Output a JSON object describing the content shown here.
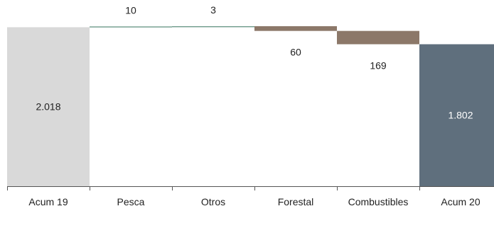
{
  "chart_data": {
    "type": "waterfall",
    "categories": [
      "Acum 19",
      "Pesca",
      "Otros",
      "Forestal",
      "Combustibles",
      "Acum 20"
    ],
    "bars": [
      {
        "category": "Acum 19",
        "kind": "total",
        "value": 2018,
        "label": "2.018"
      },
      {
        "category": "Pesca",
        "kind": "increase",
        "value": 10,
        "label": "10"
      },
      {
        "category": "Otros",
        "kind": "increase",
        "value": 3,
        "label": "3"
      },
      {
        "category": "Forestal",
        "kind": "decrease",
        "value": -60,
        "label": "60"
      },
      {
        "category": "Combustibles",
        "kind": "decrease",
        "value": -169,
        "label": "169"
      },
      {
        "category": "Acum 20",
        "kind": "total",
        "value": 1802,
        "label": "1.802"
      }
    ],
    "colors": {
      "start_total": "#d9d9d9",
      "end_total": "#5f6f7d",
      "increase": "#6e9a8a",
      "decrease": "#8c7869",
      "end_total_label": "#ffffff",
      "axis": "#555555"
    },
    "xlabel": "",
    "ylabel": "",
    "grid": false,
    "legend": "none"
  }
}
